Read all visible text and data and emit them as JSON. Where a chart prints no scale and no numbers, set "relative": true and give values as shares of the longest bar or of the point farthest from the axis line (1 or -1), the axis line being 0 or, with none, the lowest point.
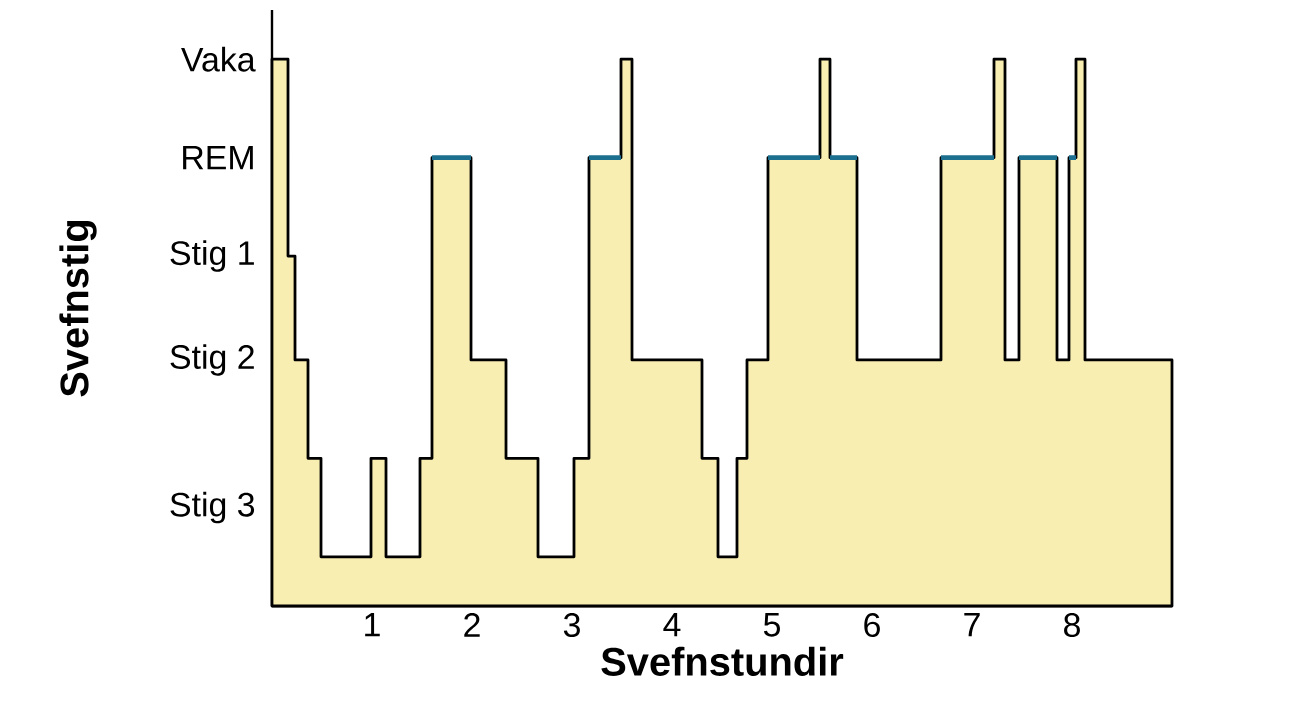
{
  "chart_data": {
    "type": "step",
    "xlabel": "Svefnstundir",
    "ylabel": "Svefnstig",
    "relative": true,
    "xlim": [
      0,
      9
    ],
    "xticks": [
      1,
      2,
      3,
      4,
      5,
      6,
      7,
      8
    ],
    "annotations": [
      "Vaka",
      "REM",
      "Stig 1",
      "Stig 2",
      "Stig 3"
    ],
    "series": [
      {
        "type": "area",
        "color": "#f8eeb2",
        "x": [
          0,
          0.16,
          0.23,
          0.36,
          0.49,
          0.99,
          1.14,
          1.48,
          1.6,
          1.99,
          2.34,
          2.66,
          3.02,
          3.17,
          3.49,
          3.6,
          4.3,
          4.46,
          4.65,
          4.75,
          4.96,
          5.48,
          5.58,
          5.85,
          6.69,
          7.22,
          7.33,
          7.47,
          7.85,
          7.97,
          8.04,
          8.13,
          9
        ],
        "values": [
          1,
          0.64,
          0.45,
          0.27,
          0.09,
          0.27,
          0.09,
          0.27,
          0.82,
          0.45,
          0.27,
          0.09,
          0.27,
          0.82,
          1,
          0.45,
          0.27,
          0.09,
          0.27,
          0.45,
          0.82,
          1,
          0.82,
          0.45,
          0.82,
          1,
          0.45,
          0.82,
          0.45,
          0.82,
          1,
          0.45,
          0.45
        ]
      },
      {
        "color": "#1d6f8f",
        "x": [
          1.6,
          1.99
        ],
        "values": [
          0.82,
          0.82
        ]
      },
      {
        "color": "#1d6f8f",
        "x": [
          3.17,
          3.49
        ],
        "values": [
          0.82,
          0.82
        ]
      },
      {
        "color": "#1d6f8f",
        "x": [
          4.96,
          5.48
        ],
        "values": [
          0.82,
          0.82
        ]
      },
      {
        "color": "#1d6f8f",
        "x": [
          5.58,
          5.85
        ],
        "values": [
          0.82,
          0.82
        ]
      },
      {
        "color": "#1d6f8f",
        "x": [
          6.69,
          7.22
        ],
        "values": [
          0.82,
          0.82
        ]
      },
      {
        "color": "#1d6f8f",
        "x": [
          7.47,
          7.85
        ],
        "values": [
          0.82,
          0.82
        ]
      },
      {
        "color": "#1d6f8f",
        "x": [
          7.97,
          8.04
        ],
        "values": [
          0.82,
          0.82
        ]
      }
    ]
  }
}
